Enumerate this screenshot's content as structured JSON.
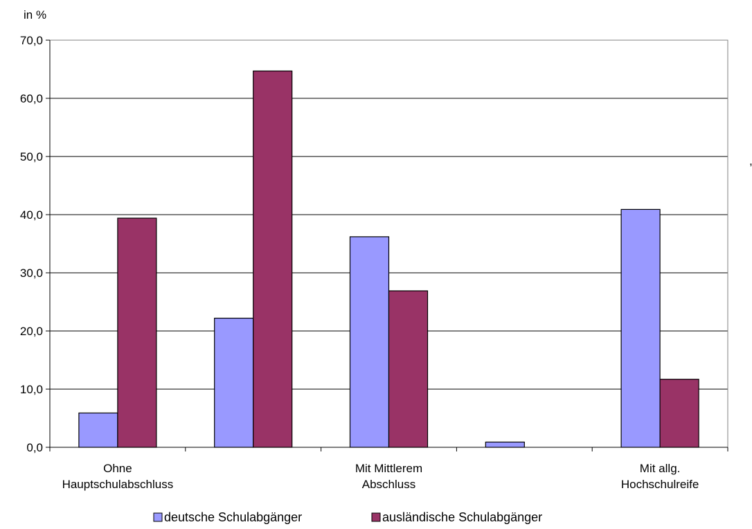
{
  "chart_data": {
    "type": "bar",
    "unit_label": "in %",
    "categories": [
      [
        "Ohne",
        "Hauptschulabschluss"
      ],
      [],
      [
        "Mit Mittlerem",
        "Abschluss"
      ],
      [],
      [
        "Mit allg.",
        "Hochschulreife"
      ]
    ],
    "series": [
      {
        "name": "deutsche Schulabgänger",
        "color": "#9999FF",
        "values": [
          5.9,
          22.2,
          36.2,
          0.9,
          40.9
        ]
      },
      {
        "name": "ausländische Schulabgänger",
        "color": "#993366",
        "values": [
          39.4,
          64.7,
          26.9,
          null,
          11.7
        ]
      }
    ],
    "ylim": [
      0,
      70
    ],
    "yticks": [
      "0,0",
      "10,0",
      "20,0",
      "30,0",
      "40,0",
      "50,0",
      "60,0",
      "70,0"
    ],
    "grid": true,
    "legend_position": "bottom",
    "stray_mark": ","
  }
}
